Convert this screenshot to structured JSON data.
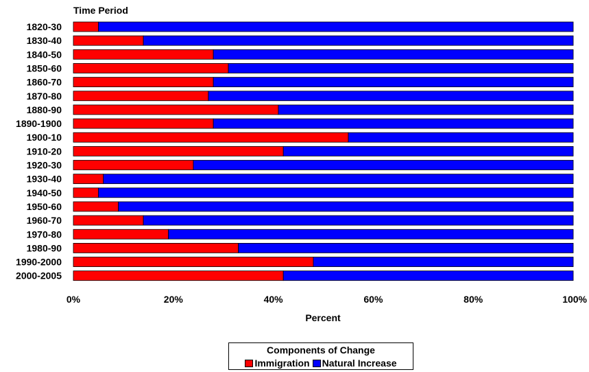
{
  "chart_data": {
    "type": "bar",
    "orientation": "horizontal",
    "stacked": "percent",
    "title": "Time Period",
    "xlabel": "Percent",
    "xlim": [
      0,
      100
    ],
    "x_ticks": [
      "0%",
      "20%",
      "40%",
      "60%",
      "80%",
      "100%"
    ],
    "grid": false,
    "categories": [
      "1820-30",
      "1830-40",
      "1840-50",
      "1850-60",
      "1860-70",
      "1870-80",
      "1880-90",
      "1890-1900",
      "1900-10",
      "1910-20",
      "1920-30",
      "1930-40",
      "1940-50",
      "1950-60",
      "1960-70",
      "1970-80",
      "1980-90",
      "1990-2000",
      "2000-2005"
    ],
    "series": [
      {
        "name": "Immigration",
        "color": "#ff0000",
        "values": [
          5,
          14,
          28,
          31,
          28,
          27,
          41,
          28,
          55,
          42,
          24,
          6,
          5,
          9,
          14,
          19,
          33,
          48,
          42
        ]
      },
      {
        "name": "Natural Increase",
        "color": "#0000ff",
        "values": [
          95,
          86,
          72,
          69,
          72,
          73,
          59,
          72,
          45,
          58,
          76,
          94,
          95,
          91,
          86,
          81,
          67,
          52,
          58
        ]
      }
    ],
    "legend": {
      "title": "Components of Change",
      "position": "bottom"
    }
  }
}
